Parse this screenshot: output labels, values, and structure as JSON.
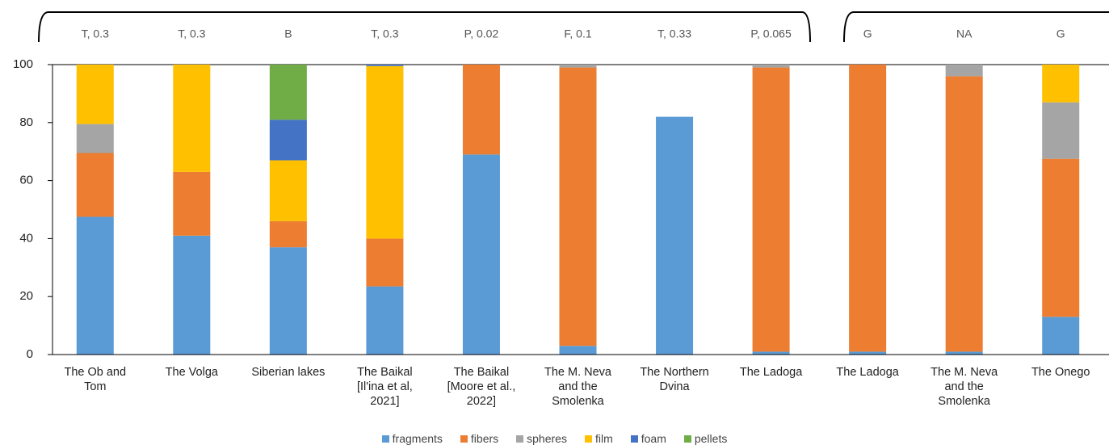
{
  "chart_data": {
    "type": "stacked_bar",
    "categories": [
      "The Ob and Tom",
      "The Volga",
      "Siberian lakes",
      "The Baikal [Il'ina et al, 2021]",
      "The Baikal [Moore et al., 2022]",
      "The M. Neva and the Smolenka",
      "The Northern Dvina",
      "The Ladoga",
      "The Ladoga",
      "The M. Neva and the Smolenka",
      "The Onego"
    ],
    "group_labels": [
      "T, 0.3",
      "T, 0.3",
      "B",
      "T, 0.3",
      "P, 0.02",
      "F, 0.1",
      "T, 0.33",
      "P, 0.065",
      "G",
      "NA",
      "G"
    ],
    "series": [
      {
        "name": "fragments",
        "color": "#5b9bd5",
        "values": [
          47.5,
          41,
          37,
          23.5,
          69,
          3,
          82,
          1,
          1,
          1,
          13
        ]
      },
      {
        "name": "fibers",
        "color": "#ed7d31",
        "values": [
          22,
          22,
          9,
          16.5,
          31,
          96,
          0,
          98,
          99,
          95,
          54.5
        ]
      },
      {
        "name": "spheres",
        "color": "#a5a5a5",
        "values": [
          10,
          0,
          0,
          0,
          0,
          1,
          0,
          1,
          0,
          4,
          19.5
        ]
      },
      {
        "name": "film",
        "color": "#ffc000",
        "values": [
          20.5,
          37,
          21,
          59.5,
          0,
          0,
          0,
          0,
          0,
          0,
          13
        ]
      },
      {
        "name": "foam",
        "color": "#4472c4",
        "values": [
          0,
          0,
          14,
          0.5,
          0,
          0,
          0,
          0,
          0,
          0,
          0
        ]
      },
      {
        "name": "pellets",
        "color": "#70ad47",
        "values": [
          0,
          0,
          19,
          0,
          0,
          0,
          0,
          0,
          0,
          0,
          0
        ]
      }
    ],
    "ylim": [
      0,
      100
    ],
    "yticks": [
      0,
      20,
      40,
      60,
      80,
      100
    ],
    "grid": false,
    "legend": "bottom"
  }
}
